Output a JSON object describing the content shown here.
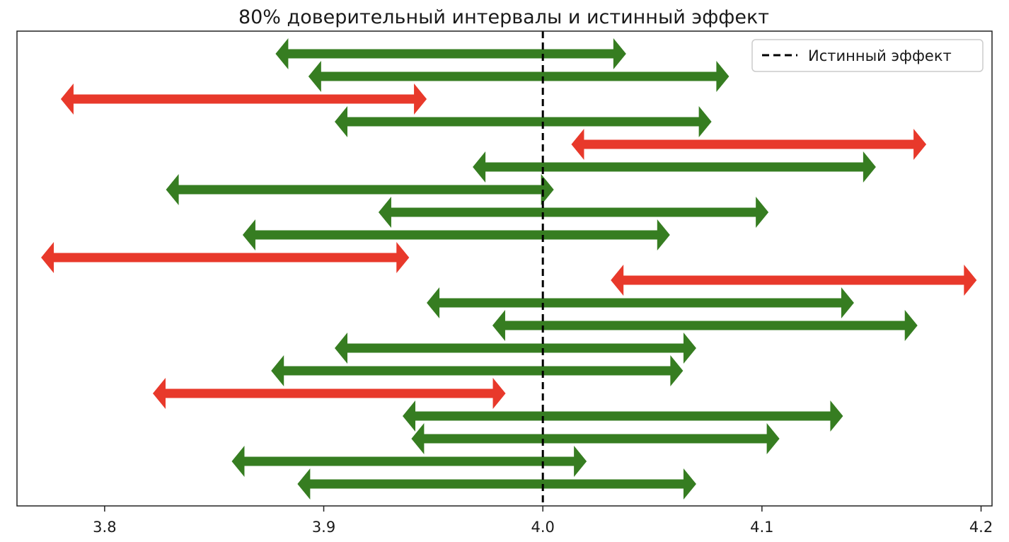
{
  "chart_data": {
    "type": "interval",
    "title": "80% доверительный интервалы и истинный эффект",
    "xlabel": "",
    "ylabel": "",
    "xlim": [
      3.76,
      4.205
    ],
    "x_ticks": [
      3.8,
      3.9,
      4.0,
      4.1,
      4.2
    ],
    "x_tick_labels": [
      "3.8",
      "3.9",
      "4.0",
      "4.1",
      "4.2"
    ],
    "y_ticks": [],
    "grid": false,
    "legend_position": "top-right",
    "true_effect": {
      "value": 4.0,
      "label": "Истинный эффект",
      "style": "dashed",
      "color": "#000000"
    },
    "colors": {
      "contains_true": "#367d21",
      "misses_true": "#e8392b"
    },
    "intervals": [
      {
        "low": 3.878,
        "high": 4.038,
        "contains": true
      },
      {
        "low": 3.893,
        "high": 4.085,
        "contains": true
      },
      {
        "low": 3.78,
        "high": 3.947,
        "contains": false
      },
      {
        "low": 3.905,
        "high": 4.077,
        "contains": true
      },
      {
        "low": 4.013,
        "high": 4.175,
        "contains": false
      },
      {
        "low": 3.968,
        "high": 4.152,
        "contains": true
      },
      {
        "low": 3.828,
        "high": 4.005,
        "contains": true
      },
      {
        "low": 3.925,
        "high": 4.103,
        "contains": true
      },
      {
        "low": 3.863,
        "high": 4.058,
        "contains": true
      },
      {
        "low": 3.771,
        "high": 3.939,
        "contains": false
      },
      {
        "low": 4.031,
        "high": 4.198,
        "contains": false
      },
      {
        "low": 3.947,
        "high": 4.142,
        "contains": true
      },
      {
        "low": 3.977,
        "high": 4.171,
        "contains": true
      },
      {
        "low": 3.905,
        "high": 4.07,
        "contains": true
      },
      {
        "low": 3.876,
        "high": 4.064,
        "contains": true
      },
      {
        "low": 3.822,
        "high": 3.983,
        "contains": false
      },
      {
        "low": 3.936,
        "high": 4.137,
        "contains": true
      },
      {
        "low": 3.94,
        "high": 4.108,
        "contains": true
      },
      {
        "low": 3.858,
        "high": 4.02,
        "contains": true
      },
      {
        "low": 3.888,
        "high": 4.07,
        "contains": true
      }
    ]
  }
}
